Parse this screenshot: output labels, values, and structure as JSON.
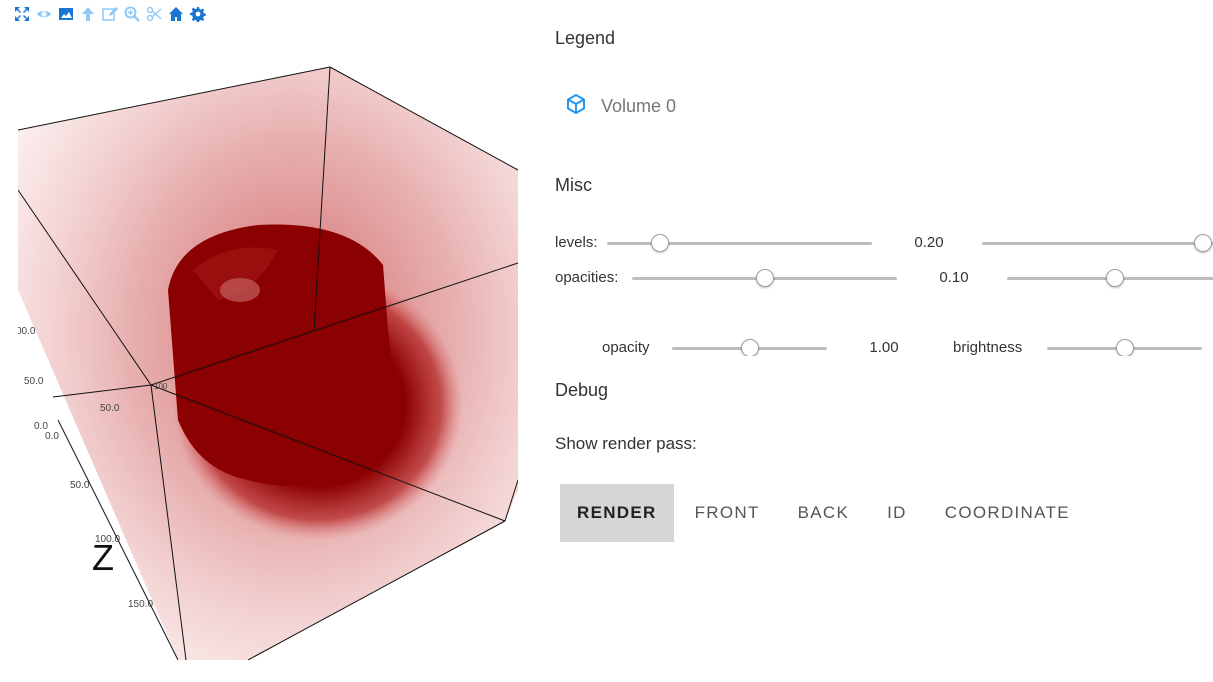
{
  "toolbar": {
    "icons": [
      "fullscreen-icon",
      "eye-icon",
      "image-icon",
      "arrow-up-icon",
      "edit-icon",
      "zoom-icon",
      "scissors-icon",
      "home-icon",
      "gear-icon"
    ],
    "accent": "#1976d2",
    "muted": "#90caf9"
  },
  "viewport": {
    "axis_name": "Z",
    "ticks": [
      "00.0",
      "50.0",
      "0.0",
      "0.0",
      "50.0",
      "100.0",
      "150.0",
      "50.0",
      "100"
    ]
  },
  "legend": {
    "title": "Legend",
    "items": [
      {
        "label": "Volume 0",
        "icon": "cube-icon",
        "color": "#2196f3"
      }
    ]
  },
  "misc": {
    "title": "Misc",
    "levels": {
      "label": "levels:",
      "value": "0.20",
      "slider1": 0.2,
      "slider2": 0.92
    },
    "opacities": {
      "label": "opacities:",
      "value": "0.10",
      "slider1": 0.5,
      "slider2": 0.5
    },
    "opacity": {
      "label": "opacity",
      "value": "1.00",
      "slider": 0.5
    },
    "brightness": {
      "label": "brightness",
      "slider": 0.5
    }
  },
  "debug": {
    "title": "Debug",
    "render_pass_label": "Show render pass:",
    "buttons": [
      "RENDER",
      "FRONT",
      "BACK",
      "ID",
      "COORDINATE"
    ],
    "selected": "RENDER"
  }
}
